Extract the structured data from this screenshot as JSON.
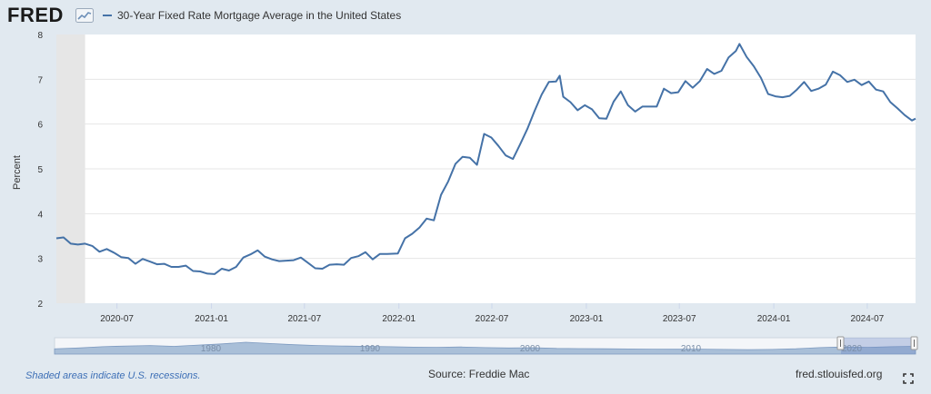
{
  "header": {
    "logo_text": "FRED",
    "series_title": "30-Year Fixed Rate Mortgage Average in the United States",
    "series_color": "#4572a7"
  },
  "footer": {
    "recession_note": "Shaded areas indicate U.S. recessions.",
    "source": "Source: Freddie Mac",
    "site": "fred.stlouisfed.org"
  },
  "navigator": {
    "labels": [
      "1980",
      "1990",
      "2000",
      "2010",
      "2020"
    ]
  },
  "chart_data": {
    "type": "line",
    "title": "30-Year Fixed Rate Mortgage Average in the United States",
    "xlabel": "",
    "ylabel": "Percent",
    "ylim": [
      2,
      8
    ],
    "xlim": [
      "2020-03-05",
      "2024-10-03"
    ],
    "yticks": [
      2,
      3,
      4,
      5,
      6,
      7,
      8
    ],
    "xticks": [
      "2020-07",
      "2021-01",
      "2021-07",
      "2022-01",
      "2022-07",
      "2023-01",
      "2023-07",
      "2024-01",
      "2024-07"
    ],
    "recession": {
      "start": "2020-03-05",
      "end": "2020-04-30"
    },
    "series": [
      {
        "name": "30-Year Fixed Rate Mortgage Average in the United States",
        "color": "#4572a7",
        "points": [
          [
            "2020-03-05",
            3.45
          ],
          [
            "2020-03-19",
            3.47
          ],
          [
            "2020-04-02",
            3.33
          ],
          [
            "2020-04-16",
            3.31
          ],
          [
            "2020-04-30",
            3.33
          ],
          [
            "2020-05-14",
            3.28
          ],
          [
            "2020-05-28",
            3.15
          ],
          [
            "2020-06-11",
            3.21
          ],
          [
            "2020-06-25",
            3.13
          ],
          [
            "2020-07-09",
            3.03
          ],
          [
            "2020-07-23",
            3.01
          ],
          [
            "2020-08-06",
            2.88
          ],
          [
            "2020-08-20",
            2.99
          ],
          [
            "2020-09-03",
            2.93
          ],
          [
            "2020-09-17",
            2.87
          ],
          [
            "2020-10-01",
            2.88
          ],
          [
            "2020-10-15",
            2.81
          ],
          [
            "2020-10-29",
            2.81
          ],
          [
            "2020-11-12",
            2.84
          ],
          [
            "2020-11-26",
            2.72
          ],
          [
            "2020-12-10",
            2.71
          ],
          [
            "2020-12-24",
            2.66
          ],
          [
            "2021-01-07",
            2.65
          ],
          [
            "2021-01-21",
            2.77
          ],
          [
            "2021-02-04",
            2.73
          ],
          [
            "2021-02-18",
            2.81
          ],
          [
            "2021-03-04",
            3.02
          ],
          [
            "2021-03-18",
            3.09
          ],
          [
            "2021-04-01",
            3.18
          ],
          [
            "2021-04-15",
            3.04
          ],
          [
            "2021-04-29",
            2.98
          ],
          [
            "2021-05-13",
            2.94
          ],
          [
            "2021-05-27",
            2.95
          ],
          [
            "2021-06-10",
            2.96
          ],
          [
            "2021-06-24",
            3.02
          ],
          [
            "2021-07-08",
            2.9
          ],
          [
            "2021-07-22",
            2.78
          ],
          [
            "2021-08-05",
            2.77
          ],
          [
            "2021-08-19",
            2.86
          ],
          [
            "2021-09-02",
            2.87
          ],
          [
            "2021-09-16",
            2.86
          ],
          [
            "2021-09-30",
            3.01
          ],
          [
            "2021-10-14",
            3.05
          ],
          [
            "2021-10-28",
            3.14
          ],
          [
            "2021-11-11",
            2.98
          ],
          [
            "2021-11-25",
            3.1
          ],
          [
            "2021-12-09",
            3.1
          ],
          [
            "2021-12-30",
            3.11
          ],
          [
            "2022-01-13",
            3.45
          ],
          [
            "2022-01-27",
            3.55
          ],
          [
            "2022-02-10",
            3.69
          ],
          [
            "2022-02-24",
            3.89
          ],
          [
            "2022-03-10",
            3.85
          ],
          [
            "2022-03-24",
            4.42
          ],
          [
            "2022-04-07",
            4.72
          ],
          [
            "2022-04-21",
            5.11
          ],
          [
            "2022-05-05",
            5.27
          ],
          [
            "2022-05-19",
            5.25
          ],
          [
            "2022-06-02",
            5.09
          ],
          [
            "2022-06-16",
            5.78
          ],
          [
            "2022-06-30",
            5.7
          ],
          [
            "2022-07-14",
            5.51
          ],
          [
            "2022-07-28",
            5.3
          ],
          [
            "2022-08-11",
            5.22
          ],
          [
            "2022-08-25",
            5.55
          ],
          [
            "2022-09-08",
            5.89
          ],
          [
            "2022-09-22",
            6.29
          ],
          [
            "2022-10-06",
            6.66
          ],
          [
            "2022-10-20",
            6.94
          ],
          [
            "2022-11-03",
            6.95
          ],
          [
            "2022-11-10",
            7.08
          ],
          [
            "2022-11-17",
            6.61
          ],
          [
            "2022-12-01",
            6.49
          ],
          [
            "2022-12-15",
            6.31
          ],
          [
            "2022-12-29",
            6.42
          ],
          [
            "2023-01-12",
            6.33
          ],
          [
            "2023-01-26",
            6.13
          ],
          [
            "2023-02-09",
            6.12
          ],
          [
            "2023-02-23",
            6.5
          ],
          [
            "2023-03-09",
            6.73
          ],
          [
            "2023-03-23",
            6.42
          ],
          [
            "2023-04-06",
            6.28
          ],
          [
            "2023-04-20",
            6.39
          ],
          [
            "2023-05-04",
            6.39
          ],
          [
            "2023-05-18",
            6.39
          ],
          [
            "2023-06-01",
            6.79
          ],
          [
            "2023-06-15",
            6.69
          ],
          [
            "2023-06-29",
            6.71
          ],
          [
            "2023-07-13",
            6.96
          ],
          [
            "2023-07-27",
            6.81
          ],
          [
            "2023-08-10",
            6.96
          ],
          [
            "2023-08-24",
            7.23
          ],
          [
            "2023-09-07",
            7.12
          ],
          [
            "2023-09-21",
            7.19
          ],
          [
            "2023-10-05",
            7.49
          ],
          [
            "2023-10-19",
            7.63
          ],
          [
            "2023-10-26",
            7.79
          ],
          [
            "2023-11-09",
            7.5
          ],
          [
            "2023-11-23",
            7.29
          ],
          [
            "2023-12-07",
            7.03
          ],
          [
            "2023-12-21",
            6.67
          ],
          [
            "2024-01-04",
            6.62
          ],
          [
            "2024-01-18",
            6.6
          ],
          [
            "2024-02-01",
            6.63
          ],
          [
            "2024-02-15",
            6.77
          ],
          [
            "2024-02-29",
            6.94
          ],
          [
            "2024-03-14",
            6.74
          ],
          [
            "2024-03-28",
            6.79
          ],
          [
            "2024-04-11",
            6.88
          ],
          [
            "2024-04-25",
            7.17
          ],
          [
            "2024-05-09",
            7.09
          ],
          [
            "2024-05-23",
            6.94
          ],
          [
            "2024-06-06",
            6.99
          ],
          [
            "2024-06-20",
            6.87
          ],
          [
            "2024-07-04",
            6.95
          ],
          [
            "2024-07-18",
            6.77
          ],
          [
            "2024-08-01",
            6.73
          ],
          [
            "2024-08-15",
            6.49
          ],
          [
            "2024-08-29",
            6.35
          ],
          [
            "2024-09-12",
            6.2
          ],
          [
            "2024-09-26",
            6.08
          ],
          [
            "2024-10-03",
            6.12
          ]
        ]
      }
    ]
  }
}
